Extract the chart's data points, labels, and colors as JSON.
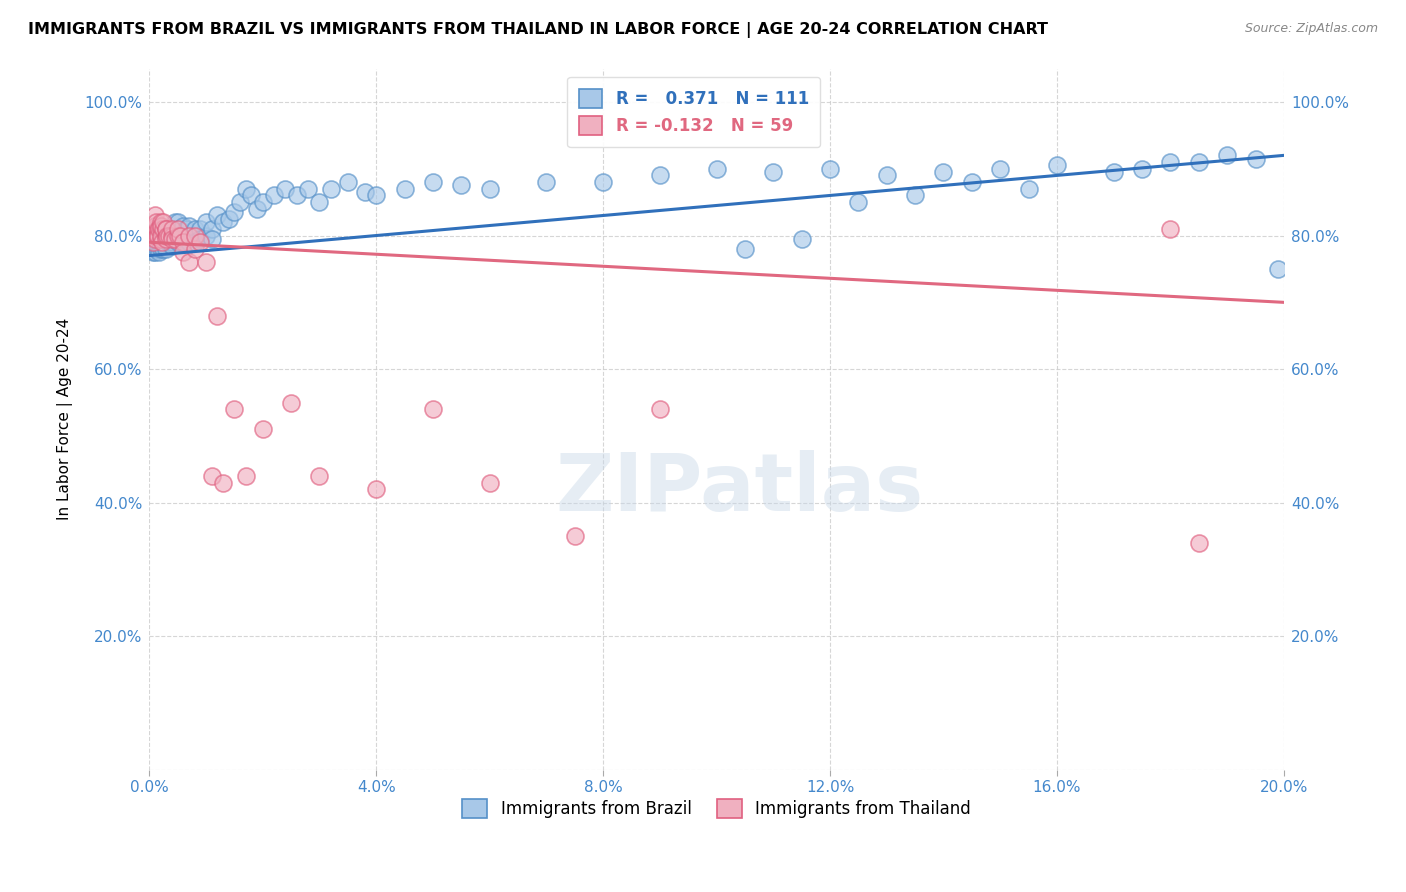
{
  "title": "IMMIGRANTS FROM BRAZIL VS IMMIGRANTS FROM THAILAND IN LABOR FORCE | AGE 20-24 CORRELATION CHART",
  "source": "Source: ZipAtlas.com",
  "ylabel": "In Labor Force | Age 20-24",
  "brazil_R": 0.371,
  "brazil_N": 111,
  "thailand_R": -0.132,
  "thailand_N": 59,
  "xlim": [
    0.0,
    0.2
  ],
  "ylim": [
    0.0,
    1.05
  ],
  "xtick_vals": [
    0.0,
    0.04,
    0.08,
    0.12,
    0.16,
    0.2
  ],
  "ytick_vals": [
    0.0,
    0.2,
    0.4,
    0.6,
    0.8,
    1.0
  ],
  "xtick_labels": [
    "0.0%",
    "4.0%",
    "8.0%",
    "12.0%",
    "16.0%",
    "20.0%"
  ],
  "ytick_labels": [
    "",
    "20.0%",
    "40.0%",
    "60.0%",
    "80.0%",
    "100.0%"
  ],
  "brazil_color": "#a8c8e8",
  "thailand_color": "#f0b0c0",
  "brazil_edge_color": "#5590c8",
  "thailand_edge_color": "#e06080",
  "brazil_line_color": "#3070bb",
  "thailand_line_color": "#e06880",
  "tick_color": "#4488cc",
  "legend_label_brazil": "Immigrants from Brazil",
  "legend_label_thailand": "Immigrants from Thailand",
  "brazil_trend_x0": 0.0,
  "brazil_trend_y0": 0.77,
  "brazil_trend_x1": 0.2,
  "brazil_trend_y1": 0.92,
  "thailand_trend_x0": 0.0,
  "thailand_trend_y0": 0.79,
  "thailand_trend_x1": 0.2,
  "thailand_trend_y1": 0.7,
  "brazil_x": [
    0.0003,
    0.0005,
    0.0007,
    0.0008,
    0.0009,
    0.001,
    0.001,
    0.001,
    0.001,
    0.001,
    0.0012,
    0.0013,
    0.0014,
    0.0015,
    0.0015,
    0.0016,
    0.0017,
    0.0018,
    0.0019,
    0.002,
    0.002,
    0.002,
    0.002,
    0.002,
    0.002,
    0.0022,
    0.0023,
    0.0024,
    0.0025,
    0.0025,
    0.0027,
    0.003,
    0.003,
    0.003,
    0.003,
    0.003,
    0.003,
    0.0032,
    0.0033,
    0.0035,
    0.004,
    0.004,
    0.004,
    0.004,
    0.0042,
    0.0045,
    0.005,
    0.005,
    0.005,
    0.005,
    0.0055,
    0.006,
    0.006,
    0.006,
    0.0065,
    0.007,
    0.007,
    0.007,
    0.008,
    0.008,
    0.009,
    0.009,
    0.01,
    0.01,
    0.011,
    0.011,
    0.012,
    0.013,
    0.014,
    0.015,
    0.016,
    0.017,
    0.018,
    0.019,
    0.02,
    0.022,
    0.024,
    0.026,
    0.028,
    0.03,
    0.032,
    0.035,
    0.038,
    0.04,
    0.045,
    0.05,
    0.055,
    0.06,
    0.07,
    0.08,
    0.09,
    0.1,
    0.11,
    0.12,
    0.13,
    0.14,
    0.15,
    0.16,
    0.17,
    0.18,
    0.19,
    0.195,
    0.199,
    0.125,
    0.105,
    0.115,
    0.135,
    0.145,
    0.155,
    0.175,
    0.185
  ],
  "brazil_y": [
    0.78,
    0.79,
    0.775,
    0.785,
    0.8,
    0.79,
    0.8,
    0.81,
    0.78,
    0.775,
    0.795,
    0.78,
    0.79,
    0.8,
    0.81,
    0.785,
    0.795,
    0.775,
    0.8,
    0.79,
    0.8,
    0.785,
    0.805,
    0.78,
    0.795,
    0.79,
    0.8,
    0.785,
    0.79,
    0.78,
    0.795,
    0.79,
    0.8,
    0.81,
    0.785,
    0.795,
    0.78,
    0.8,
    0.79,
    0.795,
    0.79,
    0.8,
    0.81,
    0.785,
    0.8,
    0.82,
    0.8,
    0.81,
    0.79,
    0.82,
    0.795,
    0.8,
    0.815,
    0.79,
    0.81,
    0.8,
    0.815,
    0.79,
    0.81,
    0.79,
    0.81,
    0.795,
    0.8,
    0.82,
    0.81,
    0.795,
    0.83,
    0.82,
    0.825,
    0.835,
    0.85,
    0.87,
    0.86,
    0.84,
    0.85,
    0.86,
    0.87,
    0.86,
    0.87,
    0.85,
    0.87,
    0.88,
    0.865,
    0.86,
    0.87,
    0.88,
    0.875,
    0.87,
    0.88,
    0.88,
    0.89,
    0.9,
    0.895,
    0.9,
    0.89,
    0.895,
    0.9,
    0.905,
    0.895,
    0.91,
    0.92,
    0.915,
    0.75,
    0.85,
    0.78,
    0.795,
    0.86,
    0.88,
    0.87,
    0.9,
    0.91
  ],
  "thailand_x": [
    0.0003,
    0.0005,
    0.0006,
    0.0007,
    0.0008,
    0.001,
    0.001,
    0.001,
    0.001,
    0.001,
    0.0012,
    0.0013,
    0.0015,
    0.0016,
    0.0017,
    0.002,
    0.002,
    0.002,
    0.002,
    0.002,
    0.0022,
    0.0025,
    0.0025,
    0.003,
    0.003,
    0.003,
    0.003,
    0.0032,
    0.0035,
    0.004,
    0.004,
    0.004,
    0.0045,
    0.005,
    0.005,
    0.0055,
    0.006,
    0.006,
    0.007,
    0.007,
    0.008,
    0.008,
    0.009,
    0.01,
    0.011,
    0.012,
    0.013,
    0.015,
    0.017,
    0.02,
    0.025,
    0.03,
    0.04,
    0.05,
    0.06,
    0.075,
    0.09,
    0.18,
    0.185
  ],
  "thailand_y": [
    0.8,
    0.81,
    0.79,
    0.81,
    0.8,
    0.83,
    0.81,
    0.8,
    0.815,
    0.795,
    0.82,
    0.8,
    0.81,
    0.8,
    0.81,
    0.82,
    0.795,
    0.81,
    0.8,
    0.815,
    0.79,
    0.81,
    0.82,
    0.8,
    0.81,
    0.795,
    0.81,
    0.8,
    0.8,
    0.8,
    0.81,
    0.795,
    0.795,
    0.8,
    0.81,
    0.8,
    0.79,
    0.775,
    0.76,
    0.8,
    0.78,
    0.8,
    0.79,
    0.76,
    0.44,
    0.68,
    0.43,
    0.54,
    0.44,
    0.51,
    0.55,
    0.44,
    0.42,
    0.54,
    0.43,
    0.35,
    0.54,
    0.81,
    0.34
  ]
}
